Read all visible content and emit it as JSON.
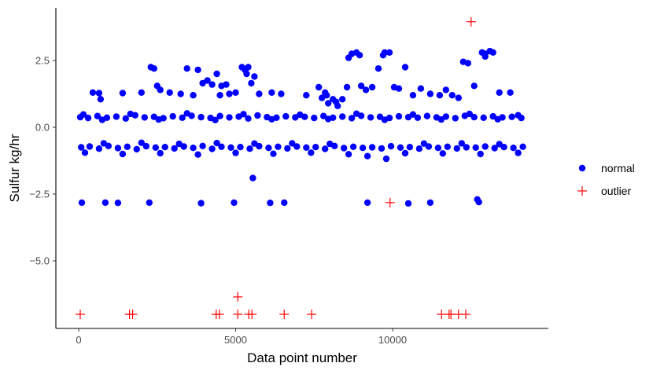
{
  "chart_data": {
    "type": "scatter",
    "title": "",
    "xlabel": "Data point number",
    "ylabel": "Sulfur kg/hr",
    "xlim": [
      -500,
      14900
    ],
    "ylim": [
      -7.5,
      4.2
    ],
    "xticks": [
      0,
      5000,
      10000
    ],
    "xtick_labels": [
      "0",
      "5000",
      "10000"
    ],
    "yticks": [
      -5.0,
      -2.5,
      0.0,
      2.5
    ],
    "ytick_labels": [
      "−5.0",
      "−2.5",
      "0.0",
      "2.5"
    ],
    "grid": false,
    "legend_position": "right",
    "colors": {
      "normal": "#0000ff",
      "outlier": "#ff0000"
    },
    "series": [
      {
        "name": "normal",
        "marker": "circle",
        "color": "#0000ff",
        "points": [
          [
            50,
            0.38
          ],
          [
            300,
            0.35
          ],
          [
            600,
            0.42
          ],
          [
            900,
            0.36
          ],
          [
            1200,
            0.4
          ],
          [
            1500,
            0.33
          ],
          [
            1800,
            0.45
          ],
          [
            2100,
            0.37
          ],
          [
            2400,
            0.39
          ],
          [
            2700,
            0.34
          ],
          [
            3000,
            0.41
          ],
          [
            3300,
            0.36
          ],
          [
            3600,
            0.43
          ],
          [
            3900,
            0.38
          ],
          [
            4200,
            0.35
          ],
          [
            4500,
            0.42
          ],
          [
            4800,
            0.37
          ],
          [
            5100,
            0.4
          ],
          [
            5400,
            0.33
          ],
          [
            5700,
            0.44
          ],
          [
            6000,
            0.38
          ],
          [
            6300,
            0.36
          ],
          [
            6600,
            0.41
          ],
          [
            6900,
            0.37
          ],
          [
            7200,
            0.39
          ],
          [
            7500,
            0.35
          ],
          [
            7800,
            0.42
          ],
          [
            8100,
            0.36
          ],
          [
            8400,
            0.4
          ],
          [
            8700,
            0.34
          ],
          [
            9000,
            0.43
          ],
          [
            9300,
            0.37
          ],
          [
            9600,
            0.39
          ],
          [
            9900,
            0.35
          ],
          [
            10200,
            0.41
          ],
          [
            10500,
            0.38
          ],
          [
            10800,
            0.36
          ],
          [
            11100,
            0.42
          ],
          [
            11400,
            0.37
          ],
          [
            11700,
            0.4
          ],
          [
            12000,
            0.34
          ],
          [
            12300,
            0.43
          ],
          [
            12600,
            0.38
          ],
          [
            12900,
            0.36
          ],
          [
            13200,
            0.41
          ],
          [
            13500,
            0.37
          ],
          [
            13800,
            0.39
          ],
          [
            14100,
            0.35
          ],
          [
            150,
            0.48
          ],
          [
            750,
            0.28
          ],
          [
            1650,
            0.5
          ],
          [
            2550,
            0.29
          ],
          [
            3450,
            0.52
          ],
          [
            4350,
            0.27
          ],
          [
            5250,
            0.49
          ],
          [
            6150,
            0.3
          ],
          [
            7050,
            0.47
          ],
          [
            7950,
            0.31
          ],
          [
            8850,
            0.51
          ],
          [
            9750,
            0.28
          ],
          [
            10650,
            0.48
          ],
          [
            11550,
            0.29
          ],
          [
            12450,
            0.5
          ],
          [
            13350,
            0.3
          ],
          [
            14000,
            0.45
          ],
          [
            80,
            -0.75
          ],
          [
            350,
            -0.72
          ],
          [
            650,
            -0.8
          ],
          [
            950,
            -0.7
          ],
          [
            1250,
            -0.78
          ],
          [
            1550,
            -0.73
          ],
          [
            1850,
            -0.82
          ],
          [
            2150,
            -0.71
          ],
          [
            2450,
            -0.76
          ],
          [
            2750,
            -0.74
          ],
          [
            3050,
            -0.79
          ],
          [
            3350,
            -0.72
          ],
          [
            3650,
            -0.77
          ],
          [
            3950,
            -0.7
          ],
          [
            4250,
            -0.81
          ],
          [
            4550,
            -0.73
          ],
          [
            4850,
            -0.76
          ],
          [
            5150,
            -0.74
          ],
          [
            5450,
            -0.8
          ],
          [
            5750,
            -0.71
          ],
          [
            6050,
            -0.77
          ],
          [
            6350,
            -0.73
          ],
          [
            6650,
            -0.79
          ],
          [
            6950,
            -0.72
          ],
          [
            7250,
            -0.76
          ],
          [
            7550,
            -0.74
          ],
          [
            7850,
            -0.81
          ],
          [
            8150,
            -0.7
          ],
          [
            8450,
            -0.78
          ],
          [
            8750,
            -0.73
          ],
          [
            9050,
            -0.77
          ],
          [
            9350,
            -0.75
          ],
          [
            9650,
            -0.79
          ],
          [
            9950,
            -0.71
          ],
          [
            10250,
            -0.76
          ],
          [
            10550,
            -0.74
          ],
          [
            10850,
            -0.8
          ],
          [
            11150,
            -0.72
          ],
          [
            11450,
            -0.77
          ],
          [
            11750,
            -0.73
          ],
          [
            12050,
            -0.79
          ],
          [
            12350,
            -0.75
          ],
          [
            12650,
            -0.76
          ],
          [
            12950,
            -0.72
          ],
          [
            13250,
            -0.78
          ],
          [
            13550,
            -0.74
          ],
          [
            13850,
            -0.77
          ],
          [
            14150,
            -0.73
          ],
          [
            200,
            -0.95
          ],
          [
            800,
            -0.6
          ],
          [
            1400,
            -1.0
          ],
          [
            2000,
            -0.58
          ],
          [
            2600,
            -0.97
          ],
          [
            3200,
            -0.62
          ],
          [
            3800,
            -1.02
          ],
          [
            4400,
            -0.59
          ],
          [
            5000,
            -0.96
          ],
          [
            5600,
            -0.61
          ],
          [
            6200,
            -0.99
          ],
          [
            6800,
            -0.6
          ],
          [
            7400,
            -0.95
          ],
          [
            8000,
            -0.62
          ],
          [
            8600,
            -1.01
          ],
          [
            9200,
            -1.08
          ],
          [
            9800,
            -1.18
          ],
          [
            10400,
            -0.97
          ],
          [
            11000,
            -0.61
          ],
          [
            11600,
            -0.98
          ],
          [
            12200,
            -0.6
          ],
          [
            12800,
            -1.0
          ],
          [
            13400,
            -0.63
          ],
          [
            14000,
            -0.96
          ],
          [
            100,
            -2.82
          ],
          [
            850,
            -2.82
          ],
          [
            1250,
            -2.83
          ],
          [
            2250,
            -2.82
          ],
          [
            3900,
            -2.84
          ],
          [
            4950,
            -2.82
          ],
          [
            6100,
            -2.83
          ],
          [
            6550,
            -2.82
          ],
          [
            9200,
            -2.82
          ],
          [
            10500,
            -2.85
          ],
          [
            11200,
            -2.82
          ],
          [
            12750,
            -2.8
          ],
          [
            12700,
            -2.7
          ],
          [
            5550,
            -1.9
          ],
          [
            450,
            1.3
          ],
          [
            650,
            1.28
          ],
          [
            700,
            1.05
          ],
          [
            1400,
            1.28
          ],
          [
            2000,
            1.3
          ],
          [
            2300,
            2.25
          ],
          [
            2400,
            2.2
          ],
          [
            2500,
            1.55
          ],
          [
            2600,
            1.4
          ],
          [
            2900,
            1.3
          ],
          [
            3250,
            1.25
          ],
          [
            3450,
            2.2
          ],
          [
            3650,
            1.2
          ],
          [
            3800,
            2.15
          ],
          [
            3950,
            1.65
          ],
          [
            4100,
            1.75
          ],
          [
            4250,
            1.6
          ],
          [
            4400,
            2.0
          ],
          [
            4550,
            1.55
          ],
          [
            4700,
            1.6
          ],
          [
            4800,
            1.25
          ],
          [
            5000,
            1.3
          ],
          [
            5200,
            2.25
          ],
          [
            5300,
            2.15
          ],
          [
            5400,
            2.25
          ],
          [
            5500,
            1.65
          ],
          [
            5600,
            1.9
          ],
          [
            5750,
            1.25
          ],
          [
            6150,
            1.3
          ],
          [
            6450,
            1.25
          ],
          [
            7250,
            1.2
          ],
          [
            7650,
            1.5
          ],
          [
            7750,
            1.1
          ],
          [
            7850,
            1.3
          ],
          [
            7950,
            0.9
          ],
          [
            8100,
            1.05
          ],
          [
            8250,
            0.8
          ],
          [
            8400,
            1.05
          ],
          [
            8550,
            1.5
          ],
          [
            8700,
            2.75
          ],
          [
            8850,
            2.8
          ],
          [
            9000,
            1.55
          ],
          [
            9150,
            1.4
          ],
          [
            9350,
            1.5
          ],
          [
            9550,
            2.2
          ],
          [
            9750,
            2.8
          ],
          [
            9900,
            2.8
          ],
          [
            10050,
            1.5
          ],
          [
            10200,
            1.45
          ],
          [
            10400,
            2.25
          ],
          [
            10650,
            1.2
          ],
          [
            10900,
            1.45
          ],
          [
            11200,
            1.25
          ],
          [
            11500,
            1.2
          ],
          [
            11700,
            1.4
          ],
          [
            11900,
            1.2
          ],
          [
            12100,
            1.1
          ],
          [
            12250,
            2.45
          ],
          [
            12400,
            2.4
          ],
          [
            12600,
            1.55
          ],
          [
            12850,
            2.8
          ],
          [
            12950,
            2.75
          ],
          [
            13100,
            2.85
          ],
          [
            13200,
            2.8
          ],
          [
            13400,
            1.3
          ],
          [
            13750,
            1.3
          ],
          [
            8600,
            2.6
          ],
          [
            8950,
            2.7
          ],
          [
            9700,
            2.7
          ],
          [
            12950,
            2.65
          ],
          [
            4500,
            1.2
          ],
          [
            5350,
            2.0
          ],
          [
            8200,
            0.95
          ],
          [
            7900,
            1.2
          ]
        ]
      },
      {
        "name": "outlier",
        "marker": "plus",
        "color": "#ff0000",
        "points": [
          [
            50,
            -7.0
          ],
          [
            1620,
            -7.0
          ],
          [
            1720,
            -7.0
          ],
          [
            4380,
            -7.0
          ],
          [
            4480,
            -7.0
          ],
          [
            5070,
            -7.0
          ],
          [
            5070,
            -6.35
          ],
          [
            5420,
            -7.0
          ],
          [
            5520,
            -7.0
          ],
          [
            6550,
            -7.0
          ],
          [
            7420,
            -7.0
          ],
          [
            9920,
            -2.82
          ],
          [
            11560,
            -7.0
          ],
          [
            11800,
            -7.0
          ],
          [
            11860,
            -7.0
          ],
          [
            12100,
            -7.0
          ],
          [
            12330,
            -7.0
          ],
          [
            12500,
            3.95
          ]
        ]
      }
    ]
  }
}
